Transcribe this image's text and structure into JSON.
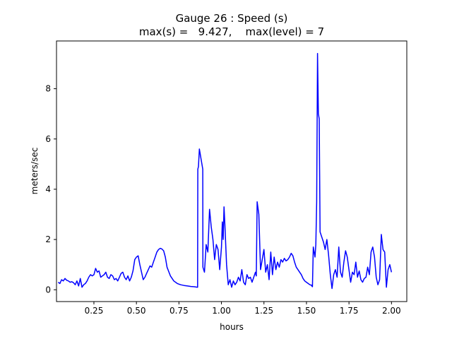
{
  "chart_data": {
    "type": "line",
    "title_line1": "Gauge 26 : Speed (s)",
    "title_line2": "max(s) =   9.427,    max(level) = 7",
    "xlabel": "hours",
    "ylabel": "meters/sec",
    "xlim": [
      0.03,
      2.09
    ],
    "ylim": [
      -0.47,
      9.9
    ],
    "xticks": [
      0.25,
      0.5,
      0.75,
      1.0,
      1.25,
      1.5,
      1.75,
      2.0
    ],
    "xtick_labels": [
      "0.25",
      "0.50",
      "0.75",
      "1.00",
      "1.25",
      "1.50",
      "1.75",
      "2.00"
    ],
    "yticks": [
      0,
      2,
      4,
      6,
      8
    ],
    "ytick_labels": [
      "0",
      "2",
      "4",
      "6",
      "8"
    ],
    "grid": false,
    "series": [
      {
        "color": "#0000ff",
        "x": [
          0.04,
          0.05,
          0.06,
          0.07,
          0.08,
          0.09,
          0.1,
          0.11,
          0.12,
          0.13,
          0.14,
          0.15,
          0.16,
          0.17,
          0.18,
          0.19,
          0.2,
          0.21,
          0.22,
          0.23,
          0.24,
          0.25,
          0.26,
          0.27,
          0.28,
          0.29,
          0.3,
          0.31,
          0.32,
          0.33,
          0.34,
          0.35,
          0.36,
          0.37,
          0.38,
          0.39,
          0.4,
          0.41,
          0.42,
          0.43,
          0.44,
          0.45,
          0.46,
          0.47,
          0.48,
          0.49,
          0.5,
          0.51,
          0.52,
          0.53,
          0.54,
          0.55,
          0.56,
          0.57,
          0.58,
          0.59,
          0.6,
          0.61,
          0.62,
          0.63,
          0.64,
          0.65,
          0.66,
          0.67,
          0.68,
          0.7,
          0.72,
          0.74,
          0.76,
          0.78,
          0.8,
          0.82,
          0.84,
          0.86,
          0.861,
          0.865,
          0.87,
          0.875,
          0.88,
          0.885,
          0.89,
          0.891,
          0.9,
          0.91,
          0.92,
          0.93,
          0.94,
          0.95,
          0.96,
          0.97,
          0.98,
          0.99,
          1.0,
          1.005,
          1.01,
          1.015,
          1.02,
          1.03,
          1.04,
          1.05,
          1.06,
          1.07,
          1.08,
          1.09,
          1.1,
          1.11,
          1.12,
          1.13,
          1.14,
          1.15,
          1.16,
          1.17,
          1.18,
          1.19,
          1.2,
          1.205,
          1.21,
          1.22,
          1.23,
          1.24,
          1.25,
          1.26,
          1.27,
          1.28,
          1.29,
          1.3,
          1.31,
          1.32,
          1.33,
          1.34,
          1.35,
          1.36,
          1.37,
          1.38,
          1.39,
          1.4,
          1.41,
          1.42,
          1.43,
          1.44,
          1.45,
          1.46,
          1.47,
          1.48,
          1.49,
          1.5,
          1.51,
          1.52,
          1.53,
          1.531,
          1.535,
          1.54,
          1.545,
          1.55,
          1.555,
          1.56,
          1.565,
          1.57,
          1.575,
          1.58,
          1.59,
          1.6,
          1.61,
          1.62,
          1.63,
          1.64,
          1.65,
          1.66,
          1.67,
          1.68,
          1.69,
          1.7,
          1.71,
          1.72,
          1.73,
          1.74,
          1.75,
          1.76,
          1.77,
          1.78,
          1.79,
          1.8,
          1.81,
          1.82,
          1.83,
          1.84,
          1.85,
          1.86,
          1.87,
          1.88,
          1.89,
          1.9,
          1.91,
          1.92,
          1.93,
          1.94,
          1.95,
          1.96,
          1.97,
          1.98,
          1.99,
          2.0
        ],
        "y": [
          0.3,
          0.25,
          0.4,
          0.35,
          0.45,
          0.38,
          0.35,
          0.3,
          0.32,
          0.28,
          0.2,
          0.35,
          0.15,
          0.45,
          0.1,
          0.2,
          0.25,
          0.35,
          0.5,
          0.6,
          0.55,
          0.6,
          0.85,
          0.7,
          0.75,
          0.5,
          0.55,
          0.6,
          0.7,
          0.5,
          0.45,
          0.6,
          0.55,
          0.4,
          0.45,
          0.35,
          0.5,
          0.65,
          0.7,
          0.5,
          0.4,
          0.55,
          0.35,
          0.5,
          0.75,
          1.2,
          1.3,
          1.35,
          1.0,
          0.7,
          0.4,
          0.5,
          0.65,
          0.8,
          0.95,
          0.9,
          1.1,
          1.3,
          1.5,
          1.6,
          1.65,
          1.62,
          1.55,
          1.3,
          0.9,
          0.55,
          0.35,
          0.25,
          0.2,
          0.17,
          0.15,
          0.13,
          0.12,
          0.1,
          4.8,
          4.9,
          5.6,
          5.4,
          5.2,
          5.0,
          4.8,
          0.9,
          0.7,
          1.8,
          1.5,
          3.2,
          2.5,
          2.0,
          1.2,
          1.8,
          1.6,
          0.8,
          1.7,
          2.7,
          2.0,
          3.3,
          2.6,
          1.0,
          0.2,
          0.4,
          0.1,
          0.35,
          0.2,
          0.3,
          0.5,
          0.35,
          0.8,
          0.3,
          0.2,
          0.6,
          0.45,
          0.5,
          0.3,
          0.5,
          0.7,
          0.55,
          3.5,
          3.0,
          0.8,
          1.2,
          1.6,
          0.7,
          1.0,
          0.4,
          1.5,
          0.6,
          1.3,
          0.8,
          1.1,
          0.9,
          1.2,
          1.1,
          1.25,
          1.15,
          1.2,
          1.3,
          1.45,
          1.35,
          1.1,
          0.9,
          0.8,
          0.7,
          0.6,
          0.45,
          0.35,
          0.3,
          0.25,
          0.2,
          0.18,
          0.15,
          0.12,
          1.7,
          1.5,
          1.3,
          1.8,
          3.5,
          9.4,
          7.0,
          6.8,
          2.3,
          2.1,
          1.9,
          1.6,
          2.0,
          1.4,
          0.6,
          0.05,
          0.6,
          0.8,
          0.5,
          1.7,
          0.7,
          0.5,
          1.1,
          1.55,
          1.3,
          0.8,
          0.3,
          0.7,
          0.6,
          1.1,
          0.5,
          0.75,
          0.4,
          0.3,
          0.45,
          0.5,
          0.9,
          0.6,
          1.5,
          1.7,
          1.3,
          0.5,
          0.2,
          0.4,
          2.2,
          1.6,
          1.5,
          0.1,
          0.8,
          1.0,
          0.7
        ]
      }
    ]
  }
}
